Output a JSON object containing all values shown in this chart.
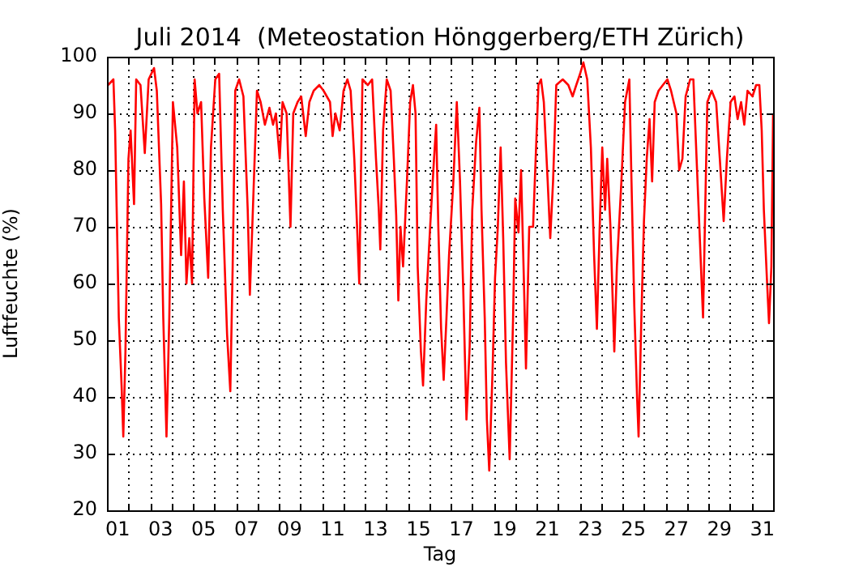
{
  "chart_data": {
    "type": "line",
    "title": "Juli 2014  (Meteostation Hönggerberg/ETH Zürich)",
    "xlabel": "Tag",
    "ylabel": "Luftfeuchte (%)",
    "xlim": [
      0,
      31
    ],
    "ylim": [
      20,
      100
    ],
    "xticks": [
      {
        "value": 0,
        "label": null
      },
      {
        "value": 1,
        "label": null
      },
      {
        "value": 2,
        "label": null
      },
      {
        "value": 3,
        "label": null
      },
      {
        "value": 4,
        "label": null
      },
      {
        "value": 5,
        "label": null
      },
      {
        "value": 6,
        "label": null
      },
      {
        "value": 7,
        "label": null
      },
      {
        "value": 8,
        "label": null
      },
      {
        "value": 9,
        "label": null
      },
      {
        "value": 10,
        "label": null
      },
      {
        "value": 11,
        "label": null
      },
      {
        "value": 12,
        "label": null
      },
      {
        "value": 13,
        "label": null
      },
      {
        "value": 14,
        "label": null
      },
      {
        "value": 15,
        "label": null
      },
      {
        "value": 16,
        "label": null
      },
      {
        "value": 17,
        "label": null
      },
      {
        "value": 18,
        "label": null
      },
      {
        "value": 19,
        "label": null
      },
      {
        "value": 20,
        "label": null
      },
      {
        "value": 21,
        "label": null
      },
      {
        "value": 22,
        "label": null
      },
      {
        "value": 23,
        "label": null
      },
      {
        "value": 24,
        "label": null
      },
      {
        "value": 25,
        "label": null
      },
      {
        "value": 26,
        "label": null
      },
      {
        "value": 27,
        "label": null
      },
      {
        "value": 28,
        "label": null
      },
      {
        "value": 29,
        "label": null
      },
      {
        "value": 30,
        "label": null
      },
      {
        "value": 31,
        "label": null
      },
      {
        "value": 0.5,
        "label": "01"
      },
      {
        "value": 2.5,
        "label": "03"
      },
      {
        "value": 4.5,
        "label": "05"
      },
      {
        "value": 6.5,
        "label": "07"
      },
      {
        "value": 8.5,
        "label": "09"
      },
      {
        "value": 10.5,
        "label": "11"
      },
      {
        "value": 12.5,
        "label": "13"
      },
      {
        "value": 14.5,
        "label": "15"
      },
      {
        "value": 16.5,
        "label": "17"
      },
      {
        "value": 18.5,
        "label": "19"
      },
      {
        "value": 20.5,
        "label": "21"
      },
      {
        "value": 22.5,
        "label": "23"
      },
      {
        "value": 24.5,
        "label": "25"
      },
      {
        "value": 26.5,
        "label": "27"
      },
      {
        "value": 28.5,
        "label": "29"
      },
      {
        "value": 30.5,
        "label": "31"
      }
    ],
    "yticks": [
      20,
      30,
      40,
      50,
      60,
      70,
      80,
      90,
      100
    ],
    "grid": true,
    "legend": false,
    "marker": "none",
    "line_style": "solid",
    "series": [
      {
        "color": "#ff0000",
        "x": [
          0.05,
          0.3,
          0.38,
          0.55,
          0.68,
          0.76,
          0.86,
          1.0,
          1.1,
          1.26,
          1.36,
          1.56,
          1.76,
          1.94,
          2.19,
          2.32,
          2.52,
          2.62,
          2.77,
          2.9,
          3.07,
          3.27,
          3.45,
          3.58,
          3.7,
          3.83,
          3.96,
          4.08,
          4.21,
          4.38,
          4.53,
          4.71,
          4.84,
          5.04,
          5.22,
          5.39,
          5.59,
          5.74,
          5.85,
          5.97,
          6.15,
          6.35,
          6.55,
          6.65,
          6.8,
          6.98,
          7.15,
          7.35,
          7.56,
          7.73,
          7.86,
          8.04,
          8.17,
          8.36,
          8.54,
          8.67,
          8.87,
          9.04,
          9.25,
          9.42,
          9.62,
          9.88,
          10.08,
          10.38,
          10.5,
          10.63,
          10.83,
          11.01,
          11.19,
          11.34,
          11.51,
          11.64,
          11.74,
          11.89,
          12.14,
          12.34,
          12.52,
          12.65,
          12.72,
          12.85,
          13.02,
          13.2,
          13.35,
          13.46,
          13.56,
          13.66,
          13.78,
          13.96,
          14.11,
          14.24,
          14.36,
          14.46,
          14.61,
          14.71,
          14.86,
          15.04,
          15.22,
          15.32,
          15.42,
          15.55,
          15.67,
          15.8,
          15.92,
          16.12,
          16.28,
          16.43,
          16.58,
          16.73,
          16.88,
          17.0,
          17.18,
          17.33,
          17.43,
          17.58,
          17.68,
          17.79,
          17.94,
          18.06,
          18.19,
          18.32,
          18.44,
          18.57,
          18.74,
          18.9,
          19.0,
          19.15,
          19.27,
          19.4,
          19.5,
          19.65,
          19.83,
          19.95,
          20.08,
          20.2,
          20.33,
          20.51,
          20.63,
          20.76,
          20.91,
          21.21,
          21.47,
          21.67,
          21.84,
          22.02,
          22.17,
          22.35,
          22.52,
          22.67,
          22.8,
          22.93,
          23.05,
          23.18,
          23.28,
          23.43,
          23.61,
          23.73,
          23.94,
          24.11,
          24.31,
          24.41,
          24.54,
          24.67,
          24.74,
          24.87,
          24.99,
          25.12,
          25.25,
          25.37,
          25.49,
          25.67,
          25.87,
          26.08,
          26.25,
          26.5,
          26.63,
          26.78,
          26.93,
          27.14,
          27.29,
          27.44,
          27.59,
          27.74,
          27.84,
          27.94,
          28.14,
          28.35,
          28.52,
          28.7,
          28.85,
          29.02,
          29.2,
          29.35,
          29.51,
          29.66,
          29.81,
          30.04,
          30.21,
          30.36,
          30.47,
          30.57,
          30.71,
          30.81,
          30.92,
          31.0
        ],
        "values": [
          95,
          96,
          87,
          54,
          42,
          33,
          48,
          82,
          87,
          74,
          96,
          95,
          83,
          96,
          98,
          94,
          74,
          54,
          33,
          54,
          92,
          84,
          65,
          78,
          60,
          68,
          60,
          96,
          90,
          92,
          75,
          61,
          84,
          96,
          97,
          73,
          51,
          41,
          63,
          94,
          96,
          93,
          73,
          58,
          74,
          94,
          92,
          88,
          91,
          88,
          90,
          82,
          92,
          90,
          70,
          90,
          92,
          93,
          86,
          92,
          94,
          95,
          94,
          92,
          86,
          90,
          87,
          94,
          96,
          94,
          82,
          70,
          60,
          96,
          95,
          96,
          82,
          73,
          66,
          87,
          96,
          94,
          82,
          72,
          57,
          70,
          63,
          78,
          92,
          95,
          90,
          63,
          48,
          42,
          57,
          70,
          82,
          88,
          70,
          52,
          43,
          54,
          65,
          78,
          92,
          78,
          59,
          36,
          49,
          73,
          85,
          91,
          73,
          54,
          36,
          27,
          44,
          61,
          70,
          84,
          68,
          46,
          29,
          54,
          75,
          69,
          80,
          61,
          45,
          70,
          70,
          82,
          95,
          96,
          92,
          78,
          68,
          78,
          95,
          96,
          95,
          93,
          95,
          97,
          99,
          96,
          84,
          65,
          52,
          70,
          84,
          73,
          82,
          70,
          48,
          63,
          78,
          92,
          96,
          78,
          56,
          40,
          33,
          54,
          71,
          82,
          89,
          78,
          92,
          94,
          95,
          96,
          94,
          90,
          80,
          82,
          93,
          96,
          96,
          82,
          68,
          54,
          73,
          92,
          94,
          92,
          82,
          71,
          82,
          92,
          93,
          89,
          92,
          88,
          94,
          93,
          95,
          95,
          87,
          73,
          61,
          53,
          63,
          90
        ]
      }
    ]
  }
}
